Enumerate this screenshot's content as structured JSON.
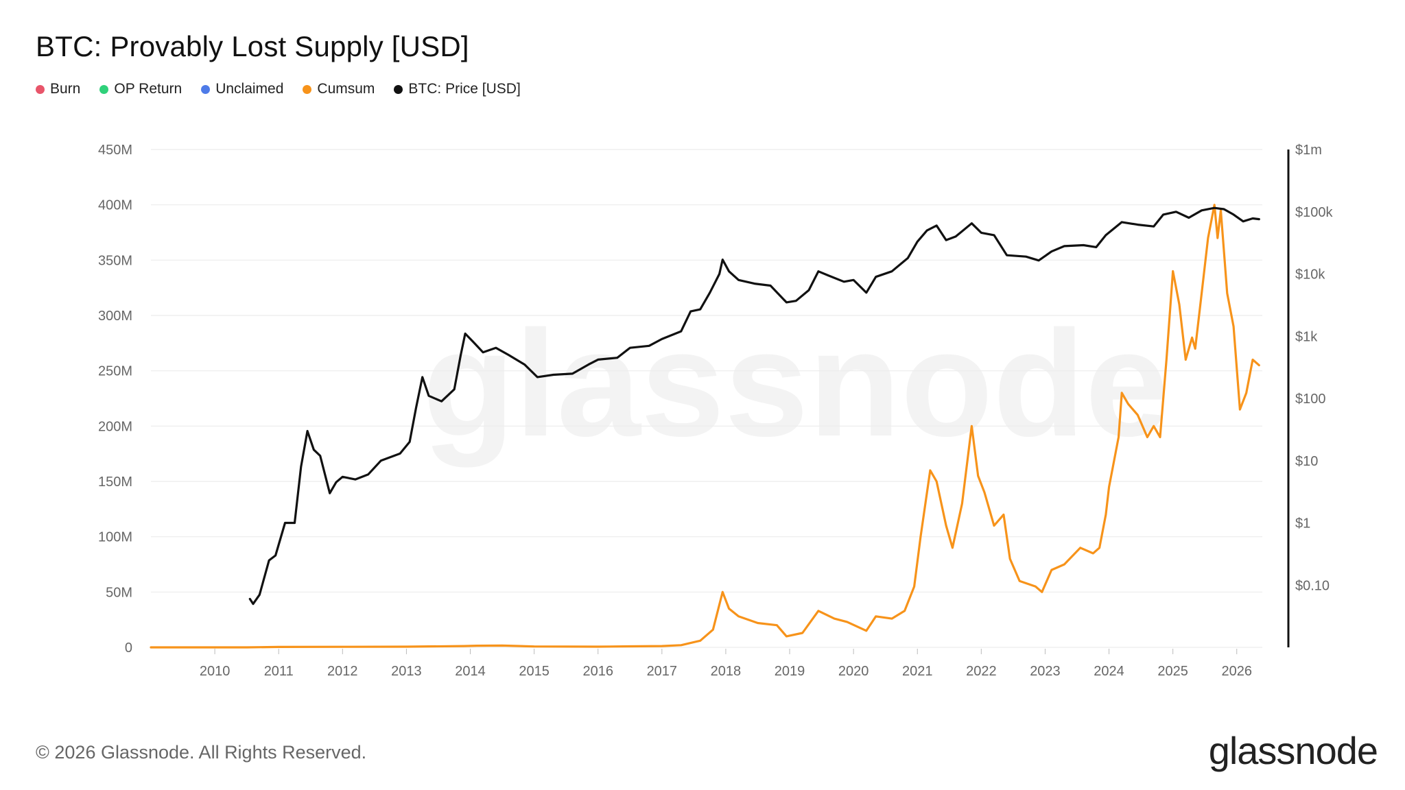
{
  "title": "BTC: Provably Lost Supply [USD]",
  "legend": [
    {
      "label": "Burn",
      "color": "#e8556a"
    },
    {
      "label": "OP Return",
      "color": "#2fd17a"
    },
    {
      "label": "Unclaimed",
      "color": "#4e7be8"
    },
    {
      "label": "Cumsum",
      "color": "#f7931a"
    },
    {
      "label": "BTC: Price [USD]",
      "color": "#111111"
    }
  ],
  "watermark": "glassnode",
  "footer": "© 2026 Glassnode. All Rights Reserved.",
  "brand": "glassnode",
  "chart_data": {
    "type": "line",
    "title": "BTC: Provably Lost Supply [USD]",
    "xlim": [
      2009.0,
      2026.4
    ],
    "x_ticks": [
      "2010",
      "2011",
      "2012",
      "2013",
      "2014",
      "2015",
      "2016",
      "2017",
      "2018",
      "2019",
      "2020",
      "2021",
      "2022",
      "2023",
      "2024",
      "2025",
      "2026"
    ],
    "y_left": {
      "ylim": [
        0,
        450000000
      ],
      "ticks": [
        "0",
        "50M",
        "100M",
        "150M",
        "200M",
        "250M",
        "300M",
        "350M",
        "400M",
        "450M"
      ]
    },
    "y_right": {
      "scale": "log",
      "ylim": [
        0.01,
        1000000
      ],
      "ticks": [
        "$0.10",
        "$1",
        "$10",
        "$100",
        "$1k",
        "$10k",
        "$100k",
        "$1m"
      ]
    },
    "grid": true,
    "series": [
      {
        "name": "Cumsum",
        "color": "#f7931a",
        "axis": "left",
        "points": [
          [
            2009.0,
            0
          ],
          [
            2010.5,
            0
          ],
          [
            2011.0,
            0.4
          ],
          [
            2012.0,
            0.5
          ],
          [
            2013.0,
            0.6
          ],
          [
            2013.9,
            1.2
          ],
          [
            2014.1,
            1.5
          ],
          [
            2014.5,
            1.6
          ],
          [
            2015.0,
            0.8
          ],
          [
            2016.0,
            0.6
          ],
          [
            2016.5,
            0.9
          ],
          [
            2017.0,
            1.2
          ],
          [
            2017.3,
            2.0
          ],
          [
            2017.6,
            6.0
          ],
          [
            2017.8,
            16.0
          ],
          [
            2017.95,
            50.0
          ],
          [
            2018.05,
            35.0
          ],
          [
            2018.2,
            28.0
          ],
          [
            2018.5,
            22.0
          ],
          [
            2018.8,
            20.0
          ],
          [
            2018.95,
            10.0
          ],
          [
            2019.2,
            13.0
          ],
          [
            2019.45,
            33.0
          ],
          [
            2019.7,
            26.0
          ],
          [
            2019.9,
            23.0
          ],
          [
            2020.2,
            15.0
          ],
          [
            2020.35,
            28.0
          ],
          [
            2020.6,
            26.0
          ],
          [
            2020.8,
            33.0
          ],
          [
            2020.95,
            55.0
          ],
          [
            2021.05,
            100.0
          ],
          [
            2021.2,
            160.0
          ],
          [
            2021.3,
            150.0
          ],
          [
            2021.45,
            110.0
          ],
          [
            2021.55,
            90.0
          ],
          [
            2021.7,
            130.0
          ],
          [
            2021.85,
            200.0
          ],
          [
            2021.95,
            155.0
          ],
          [
            2022.05,
            140.0
          ],
          [
            2022.2,
            110.0
          ],
          [
            2022.35,
            120.0
          ],
          [
            2022.45,
            80.0
          ],
          [
            2022.6,
            60.0
          ],
          [
            2022.85,
            55.0
          ],
          [
            2022.95,
            50.0
          ],
          [
            2023.1,
            70.0
          ],
          [
            2023.3,
            75.0
          ],
          [
            2023.55,
            90.0
          ],
          [
            2023.75,
            85.0
          ],
          [
            2023.85,
            90.0
          ],
          [
            2023.95,
            120.0
          ],
          [
            2024.0,
            145.0
          ],
          [
            2024.15,
            190.0
          ],
          [
            2024.2,
            230.0
          ],
          [
            2024.3,
            220.0
          ],
          [
            2024.45,
            210.0
          ],
          [
            2024.6,
            190.0
          ],
          [
            2024.7,
            200.0
          ],
          [
            2024.8,
            190.0
          ],
          [
            2024.9,
            260.0
          ],
          [
            2025.0,
            340.0
          ],
          [
            2025.1,
            310.0
          ],
          [
            2025.2,
            260.0
          ],
          [
            2025.3,
            280.0
          ],
          [
            2025.35,
            270.0
          ],
          [
            2025.45,
            320.0
          ],
          [
            2025.55,
            370.0
          ],
          [
            2025.65,
            400.0
          ],
          [
            2025.7,
            370.0
          ],
          [
            2025.75,
            395.0
          ],
          [
            2025.85,
            320.0
          ],
          [
            2025.95,
            290.0
          ],
          [
            2026.05,
            215.0
          ],
          [
            2026.15,
            230.0
          ],
          [
            2026.25,
            260.0
          ],
          [
            2026.35,
            255.0
          ]
        ]
      },
      {
        "name": "BTC: Price [USD]",
        "color": "#111111",
        "axis": "right",
        "points": [
          [
            2010.55,
            0.06
          ],
          [
            2010.6,
            0.05
          ],
          [
            2010.7,
            0.07
          ],
          [
            2010.85,
            0.25
          ],
          [
            2010.95,
            0.3
          ],
          [
            2011.1,
            1.0
          ],
          [
            2011.25,
            1.0
          ],
          [
            2011.35,
            8.0
          ],
          [
            2011.45,
            30.0
          ],
          [
            2011.55,
            15.0
          ],
          [
            2011.65,
            12.0
          ],
          [
            2011.8,
            3.0
          ],
          [
            2011.9,
            4.5
          ],
          [
            2012.0,
            5.5
          ],
          [
            2012.2,
            5.0
          ],
          [
            2012.4,
            6.0
          ],
          [
            2012.6,
            10.0
          ],
          [
            2012.9,
            13.0
          ],
          [
            2013.05,
            20.0
          ],
          [
            2013.15,
            70.0
          ],
          [
            2013.25,
            220.0
          ],
          [
            2013.35,
            110.0
          ],
          [
            2013.55,
            90.0
          ],
          [
            2013.75,
            140.0
          ],
          [
            2013.85,
            500.0
          ],
          [
            2013.92,
            1100.0
          ],
          [
            2014.05,
            800.0
          ],
          [
            2014.2,
            550.0
          ],
          [
            2014.4,
            650.0
          ],
          [
            2014.6,
            500.0
          ],
          [
            2014.85,
            350.0
          ],
          [
            2015.05,
            220.0
          ],
          [
            2015.3,
            240.0
          ],
          [
            2015.6,
            250.0
          ],
          [
            2015.85,
            350.0
          ],
          [
            2016.0,
            420.0
          ],
          [
            2016.3,
            450.0
          ],
          [
            2016.5,
            650.0
          ],
          [
            2016.8,
            700.0
          ],
          [
            2017.0,
            900.0
          ],
          [
            2017.3,
            1200.0
          ],
          [
            2017.45,
            2500.0
          ],
          [
            2017.6,
            2700.0
          ],
          [
            2017.75,
            5000.0
          ],
          [
            2017.9,
            10000.0
          ],
          [
            2017.95,
            17000.0
          ],
          [
            2018.05,
            11000.0
          ],
          [
            2018.2,
            8000.0
          ],
          [
            2018.45,
            7000.0
          ],
          [
            2018.7,
            6500.0
          ],
          [
            2018.95,
            3500.0
          ],
          [
            2019.1,
            3700.0
          ],
          [
            2019.3,
            5500.0
          ],
          [
            2019.45,
            11000.0
          ],
          [
            2019.6,
            9500.0
          ],
          [
            2019.85,
            7500.0
          ],
          [
            2020.0,
            8000.0
          ],
          [
            2020.2,
            5000.0
          ],
          [
            2020.35,
            9000.0
          ],
          [
            2020.6,
            11000.0
          ],
          [
            2020.85,
            18000.0
          ],
          [
            2021.0,
            33000.0
          ],
          [
            2021.15,
            50000.0
          ],
          [
            2021.3,
            60000.0
          ],
          [
            2021.45,
            35000.0
          ],
          [
            2021.6,
            40000.0
          ],
          [
            2021.85,
            65000.0
          ],
          [
            2022.0,
            46000.0
          ],
          [
            2022.2,
            42000.0
          ],
          [
            2022.4,
            20000.0
          ],
          [
            2022.7,
            19000.0
          ],
          [
            2022.9,
            16500.0
          ],
          [
            2023.1,
            23000.0
          ],
          [
            2023.3,
            28000.0
          ],
          [
            2023.6,
            29000.0
          ],
          [
            2023.8,
            27000.0
          ],
          [
            2023.95,
            42000.0
          ],
          [
            2024.2,
            68000.0
          ],
          [
            2024.45,
            62000.0
          ],
          [
            2024.7,
            58000.0
          ],
          [
            2024.85,
            90000.0
          ],
          [
            2025.05,
            100000.0
          ],
          [
            2025.25,
            80000.0
          ],
          [
            2025.45,
            105000.0
          ],
          [
            2025.65,
            115000.0
          ],
          [
            2025.8,
            110000.0
          ],
          [
            2025.95,
            90000.0
          ],
          [
            2026.1,
            70000.0
          ],
          [
            2026.25,
            78000.0
          ],
          [
            2026.35,
            76000.0
          ]
        ]
      }
    ]
  }
}
